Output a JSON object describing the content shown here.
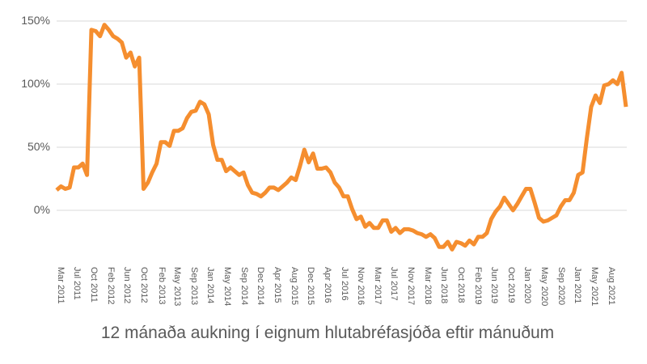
{
  "chart_data": {
    "type": "line",
    "title": "12 mánaða aukning í eignum hlutabréfasjóða eftir mánuðum",
    "xlabel": "",
    "ylabel": "",
    "ylim": [
      -35,
      150
    ],
    "yticks": [
      "150%",
      "100%",
      "50%",
      "0%"
    ],
    "ytick_values": [
      150,
      100,
      50,
      0
    ],
    "grid": true,
    "legend": null,
    "line_color": "#F58E2F",
    "grid_color": "#D9D9D9",
    "x_tick_labels": [
      "Mar 2011",
      "Jul 2011",
      "Oct 2011",
      "Feb 2012",
      "Jun 2012",
      "Oct 2012",
      "Feb 2013",
      "May 2013",
      "Sep 2013",
      "Jan 2014",
      "May 2014",
      "Sep 2014",
      "Dec 2014",
      "Apr 2015",
      "Aug 2015",
      "Dec 2015",
      "Apr 2016",
      "Jul 2016",
      "Nov 2016",
      "Mar 2017",
      "Jul 2017",
      "Nov 2017",
      "Mar 2018",
      "Jun 2018",
      "Oct 2018",
      "Feb 2019",
      "Jun 2019",
      "Oct 2019",
      "Jan 2020",
      "May 2020",
      "Sep 2020",
      "Jan 2021",
      "May 2021",
      "Aug 2021"
    ],
    "series": [
      {
        "name": "12 mánaða aukning",
        "values": [
          16,
          19,
          17,
          18,
          34,
          34,
          37,
          28,
          143,
          142,
          138,
          147,
          143,
          138,
          136,
          133,
          121,
          125,
          114,
          121,
          17,
          22,
          30,
          37,
          54,
          54,
          51,
          63,
          63,
          65,
          73,
          78,
          79,
          86,
          84,
          76,
          52,
          40,
          40,
          31,
          34,
          31,
          28,
          30,
          20,
          14,
          13,
          11,
          14,
          18,
          18,
          16,
          19,
          22,
          26,
          24,
          35,
          48,
          38,
          45,
          33,
          33,
          34,
          30,
          22,
          18,
          11,
          11,
          1,
          -7,
          -5,
          -13,
          -10,
          -14,
          -14,
          -8,
          -8,
          -17,
          -14,
          -18,
          -15,
          -15,
          -16,
          -18,
          -19,
          -21,
          -19,
          -22,
          -29,
          -29,
          -25,
          -31,
          -25,
          -26,
          -28,
          -24,
          -27,
          -21,
          -21,
          -18,
          -7,
          -1,
          3,
          10,
          5,
          0,
          5,
          11,
          17,
          17,
          6,
          -6,
          -9,
          -8,
          -6,
          -4,
          3,
          8,
          8,
          14,
          28,
          30,
          57,
          82,
          91,
          85,
          99,
          100,
          103,
          100,
          109,
          82
        ]
      }
    ]
  }
}
